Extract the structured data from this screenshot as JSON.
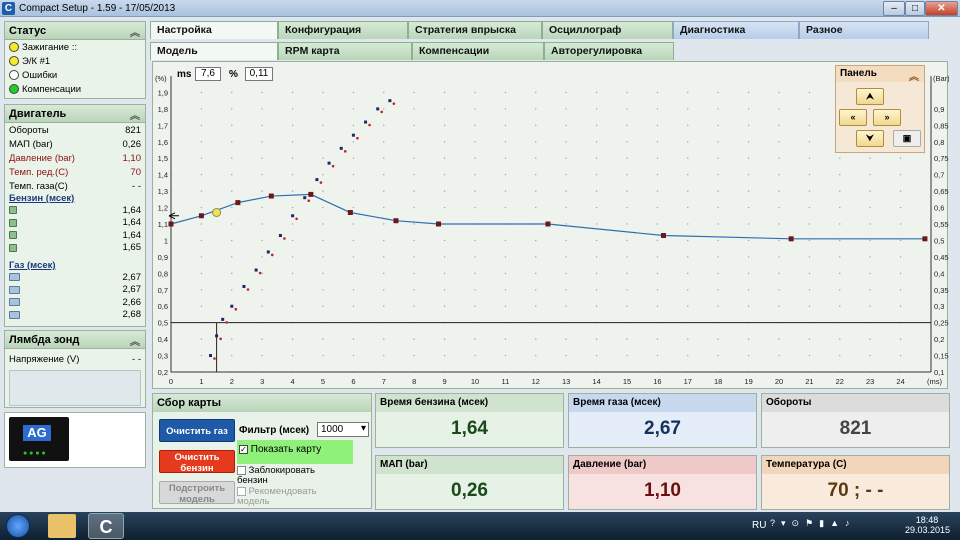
{
  "window": {
    "title": "Compact Setup - 1.59 - 17/05/2013"
  },
  "status": {
    "title": "Статус",
    "items": [
      {
        "label": "Зажигание ::",
        "color": "#f4ea2a"
      },
      {
        "label": "Э/К #1",
        "color": "#f4ea2a"
      },
      {
        "label": "Ошибки",
        "color": "#ffffff"
      },
      {
        "label": "Компенсации",
        "color": "#22cc22"
      }
    ]
  },
  "engine": {
    "title": "Двигатель",
    "rows": [
      {
        "label": "Обороты",
        "value": "821"
      },
      {
        "label": "МАП (bar)",
        "value": "0,26"
      },
      {
        "label": "Давление (bar)",
        "value": "1,10"
      },
      {
        "label": "Темп. ред.(C)",
        "value": "70"
      },
      {
        "label": "Темп. газа(C)",
        "value": "- -"
      }
    ],
    "petrol_label": "Бензин (мсек)",
    "petrol": [
      "1,64",
      "1,64",
      "1,64",
      "1,65"
    ],
    "gas_label": "Газ (мсек)",
    "gas": [
      "2,67",
      "2,67",
      "2,66",
      "2,68"
    ]
  },
  "lambda": {
    "title": "Лямбда зонд",
    "label": "Напряжение (V)",
    "value": "- -"
  },
  "tabs": [
    "Настройка",
    "Конфигурация",
    "Стратегия впрыска",
    "Осциллограф",
    "Диагностика",
    "Разное"
  ],
  "subtabs": [
    "Модель",
    "RPM карта",
    "Компенсации",
    "Авторегулировка"
  ],
  "chart_header": {
    "ms_label": "ms",
    "ms_value": "7,6",
    "pct_label": "%",
    "pct_value": "0,11"
  },
  "panel": {
    "title": "Панель"
  },
  "chart_data": {
    "type": "scatter",
    "left_axis_unit": "(%)",
    "right_axis_unit": "(Bar)",
    "x_unit": "(ms)",
    "x_ticks": [
      "0",
      "1",
      "2",
      "3",
      "4",
      "5",
      "6",
      "7",
      "8",
      "9",
      "10",
      "11",
      "12",
      "13",
      "14",
      "15",
      "16",
      "17",
      "18",
      "19",
      "20",
      "21",
      "22",
      "23",
      "24"
    ],
    "left_ticks": [
      "0,2",
      "0,3",
      "0,4",
      "0,5",
      "0,6",
      "0,7",
      "0,8",
      "0,9",
      "1",
      "1,1",
      "1,2",
      "1,3",
      "1,4",
      "1,5",
      "1,6",
      "1,7",
      "1,8",
      "1,9"
    ],
    "right_ticks": [
      "0,1",
      "0,15",
      "0,2",
      "0,25",
      "0,3",
      "0,35",
      "0,4",
      "0,45",
      "0,5",
      "0,55",
      "0,6",
      "0,65",
      "0,7",
      "0,75",
      "0,8",
      "0,85",
      "0,9"
    ],
    "xlim": [
      0,
      25
    ],
    "ylim": [
      0.2,
      2.0
    ],
    "correction_curve": {
      "x": [
        0,
        1,
        2.2,
        3.3,
        4.6,
        5.9,
        7.4,
        8.8,
        12.4,
        16.2,
        20.4,
        24.8
      ],
      "y": [
        1.1,
        1.15,
        1.23,
        1.27,
        1.28,
        1.17,
        1.12,
        1.1,
        1.1,
        1.03,
        1.01,
        1.01
      ]
    },
    "map_points": {
      "x": [
        1.3,
        1.5,
        1.7,
        2.0,
        2.4,
        2.8,
        3.2,
        3.6,
        4.0,
        4.4,
        4.8,
        5.2,
        5.6,
        6.0,
        6.4,
        6.8,
        7.2
      ],
      "y": [
        0.3,
        0.42,
        0.52,
        0.6,
        0.72,
        0.82,
        0.93,
        1.03,
        1.15,
        1.26,
        1.37,
        1.47,
        1.56,
        1.64,
        1.72,
        1.8,
        1.85
      ]
    },
    "cursor": {
      "x": 1.5,
      "y": 1.17
    },
    "threshold": 0.5
  },
  "collect": {
    "title": "Сбор карты",
    "clear_gas": "Очистить газ",
    "clear_petrol": "Очистить бензин",
    "build": "Подстроить модель",
    "filter_label": "Фильтр (мсек)",
    "filter_value": "1000",
    "show_map": "Показать карту",
    "lock_petrol": "Заблокировать бензин",
    "recommend": "Рекомендовать модель"
  },
  "cards": [
    {
      "title": "Время бензина (мсек)",
      "value": "1,64",
      "bg": "#e6f2e6",
      "head": "#cfe3cf",
      "color": "#1a4a1a"
    },
    {
      "title": "Время газа (мсек)",
      "value": "2,67",
      "bg": "#e4edf8",
      "head": "#c8d9ef",
      "color": "#16325a"
    },
    {
      "title": "Обороты",
      "value": "821",
      "bg": "#eeeeee",
      "head": "#dcdcdc",
      "color": "#444"
    },
    {
      "title": "МАП (bar)",
      "value": "0,26",
      "bg": "#e6f2e6",
      "head": "#cfe3cf",
      "color": "#1a4a1a"
    },
    {
      "title": "Давление (bar)",
      "value": "1,10",
      "bg": "#f8e1e1",
      "head": "#efc8c8",
      "color": "#6a1010"
    },
    {
      "title": "Температура (С)",
      "value": "70 ;  - -",
      "bg": "#f9eadc",
      "head": "#f1d6bb",
      "color": "#5a3a10"
    }
  ],
  "taskbar": {
    "lang": "RU",
    "time": "18:48",
    "date": "29.03.2015"
  }
}
